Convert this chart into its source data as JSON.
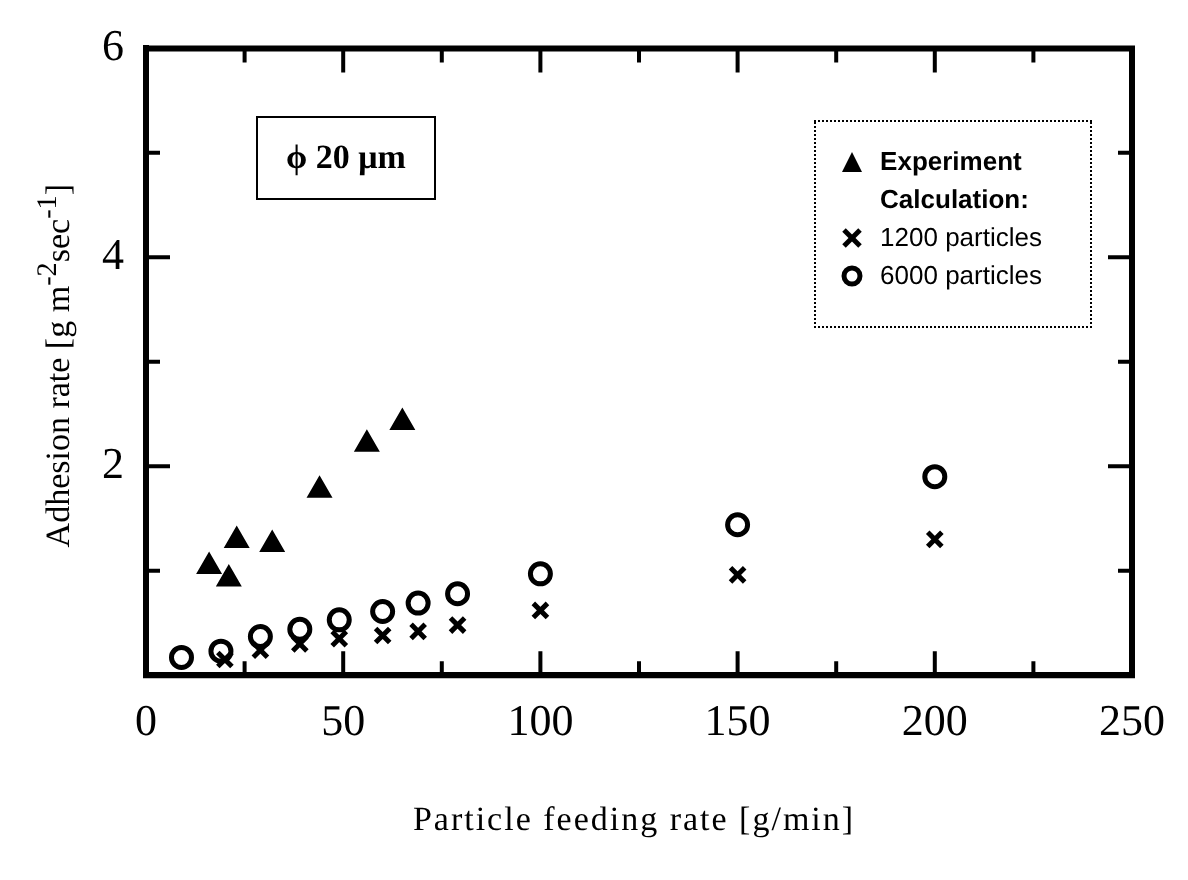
{
  "chart_data": {
    "type": "scatter",
    "xlabel": "Particle feeding rate [g/min]",
    "ylabel": "Adhesion rate [g m$^{-2}$sec$^{-1}$]",
    "legend_title": "Calculation:",
    "annotations": [
      "ϕ 20 μm"
    ],
    "xlim": [
      0,
      250
    ],
    "xticks": [
      0,
      {
        "value": 25,
        "label": null
      },
      50,
      {
        "value": 75,
        "label": null
      },
      100,
      {
        "value": 125,
        "label": null
      },
      150,
      {
        "value": 175,
        "label": null
      },
      200,
      {
        "value": 225,
        "label": null
      },
      250
    ],
    "ylim": [
      0,
      6
    ],
    "yticks": [
      {
        "value": 0,
        "label": null
      },
      {
        "value": 1,
        "label": null
      },
      2,
      {
        "value": 3,
        "label": null
      },
      4,
      {
        "value": 5,
        "label": null
      },
      6
    ],
    "grid": false,
    "legend": "top right",
    "series": [
      {
        "name": "Experiment",
        "color": "#000000",
        "marker": "triangle",
        "x": [
          16,
          21,
          23,
          32,
          44,
          56,
          65
        ],
        "values": [
          1.04,
          0.92,
          1.29,
          1.25,
          1.77,
          2.21,
          2.42
        ]
      },
      {
        "name": "1200 particles",
        "color": "#000000",
        "marker": "cross",
        "x": [
          20,
          29,
          39,
          49,
          60,
          69,
          79,
          100,
          150,
          200
        ],
        "values": [
          0.15,
          0.24,
          0.3,
          0.35,
          0.38,
          0.42,
          0.48,
          0.62,
          0.96,
          1.3
        ]
      },
      {
        "name": "6000 particles",
        "color": "#000000",
        "marker": "circle",
        "x": [
          9,
          19,
          29,
          39,
          49,
          60,
          69,
          79,
          100,
          150,
          200
        ],
        "values": [
          0.17,
          0.23,
          0.37,
          0.44,
          0.53,
          0.61,
          0.69,
          0.78,
          0.97,
          1.44,
          1.9
        ]
      }
    ]
  }
}
